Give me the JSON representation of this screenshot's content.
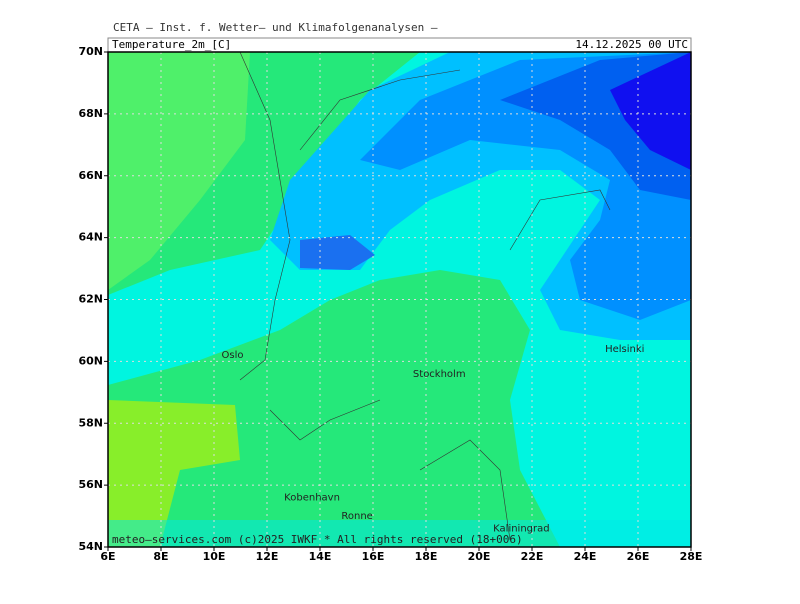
{
  "header": {
    "institute": "CETA — Inst. f. Wetter— und Klimafolgenanalysen —",
    "field": "Temperature_2m_[C]",
    "datetime": "14.12.2025 00 UTC"
  },
  "footer": "meteo—services.com (c)2025 IWKF * All rights reserved (18+006)",
  "map": {
    "lon_ticks": [
      {
        "value": 6,
        "label": "6E"
      },
      {
        "value": 8,
        "label": "8E"
      },
      {
        "value": 10,
        "label": "10E"
      },
      {
        "value": 12,
        "label": "12E"
      },
      {
        "value": 14,
        "label": "14E"
      },
      {
        "value": 16,
        "label": "16E"
      },
      {
        "value": 18,
        "label": "18E"
      },
      {
        "value": 20,
        "label": "20E"
      },
      {
        "value": 22,
        "label": "22E"
      },
      {
        "value": 24,
        "label": "24E"
      },
      {
        "value": 26,
        "label": "26E"
      },
      {
        "value": 28,
        "label": "28E"
      }
    ],
    "lat_ticks": [
      {
        "value": 54,
        "label": "54N"
      },
      {
        "value": 56,
        "label": "56N"
      },
      {
        "value": 58,
        "label": "58N"
      },
      {
        "value": 60,
        "label": "60N"
      },
      {
        "value": 62,
        "label": "62N"
      },
      {
        "value": 64,
        "label": "64N"
      },
      {
        "value": 66,
        "label": "66N"
      },
      {
        "value": 68,
        "label": "68N"
      },
      {
        "value": 70,
        "label": "70N"
      }
    ],
    "cities": [
      {
        "name": "Oslo",
        "lon": 10.7,
        "lat": 60.2
      },
      {
        "name": "Stockholm",
        "lon": 18.5,
        "lat": 59.6
      },
      {
        "name": "Helsinki",
        "lon": 25.5,
        "lat": 60.4
      },
      {
        "name": "Kobenhavn",
        "lon": 13.7,
        "lat": 55.6
      },
      {
        "name": "Ronne",
        "lon": 15.4,
        "lat": 55.0
      },
      {
        "name": "Kaliningrad",
        "lon": 21.6,
        "lat": 54.6
      }
    ]
  }
}
